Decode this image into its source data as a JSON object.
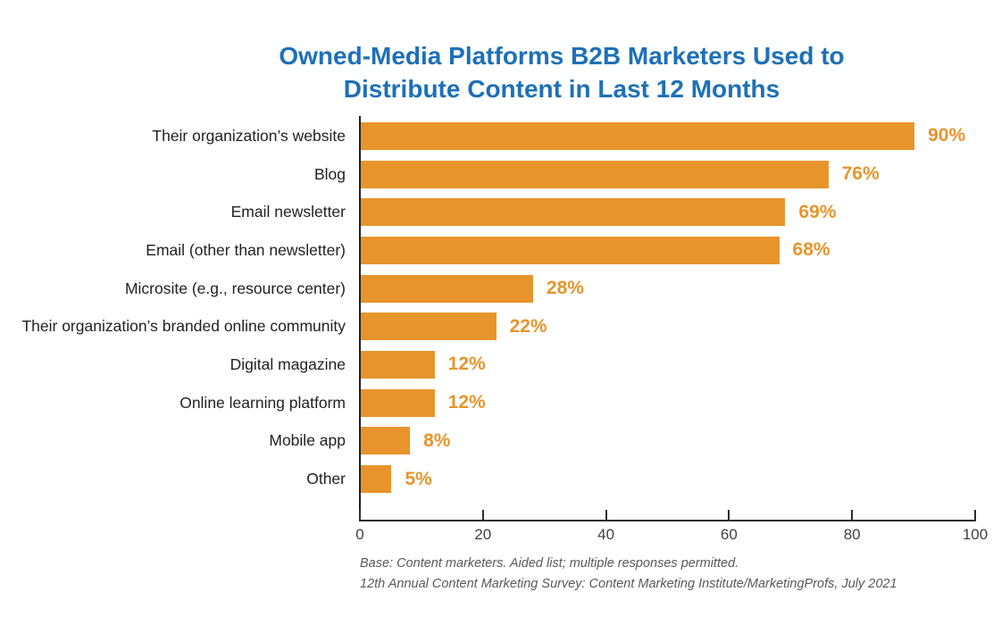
{
  "header": {
    "title_lines": [
      "Owned-Media Platforms B2B Marketers Used to",
      "Distribute Content in Last 12 Months"
    ]
  },
  "chart_data": {
    "type": "bar",
    "orientation": "horizontal",
    "title": "Owned-Media Platforms B2B Marketers Used to Distribute Content in Last 12 Months",
    "categories": [
      "Their organization’s website",
      "Blog",
      "Email newsletter",
      "Email (other than newsletter)",
      "Microsite (e.g., resource center)",
      "Their organization’s branded online community",
      "Digital magazine",
      "Online learning platform",
      "Mobile app",
      "Other"
    ],
    "values": [
      90,
      76,
      69,
      68,
      28,
      22,
      12,
      12,
      8,
      5
    ],
    "value_labels": [
      "90%",
      "76%",
      "69%",
      "68%",
      "28%",
      "22%",
      "12%",
      "12%",
      "8%",
      "5%"
    ],
    "xlabel": "",
    "ylabel": "",
    "xlim": [
      0,
      100
    ],
    "x_ticks": [
      "0",
      "20",
      "40",
      "60",
      "80",
      "100"
    ],
    "grid": false,
    "legend": false,
    "bar_color": "#E8942C",
    "value_label_color": "#E8942C",
    "title_color": "#1D70B8"
  },
  "footnotes": {
    "line1": "Base: Content marketers. Aided list; multiple responses permitted.",
    "line2": "12th Annual Content Marketing Survey: Content Marketing Institute/MarketingProfs, July 2021"
  }
}
